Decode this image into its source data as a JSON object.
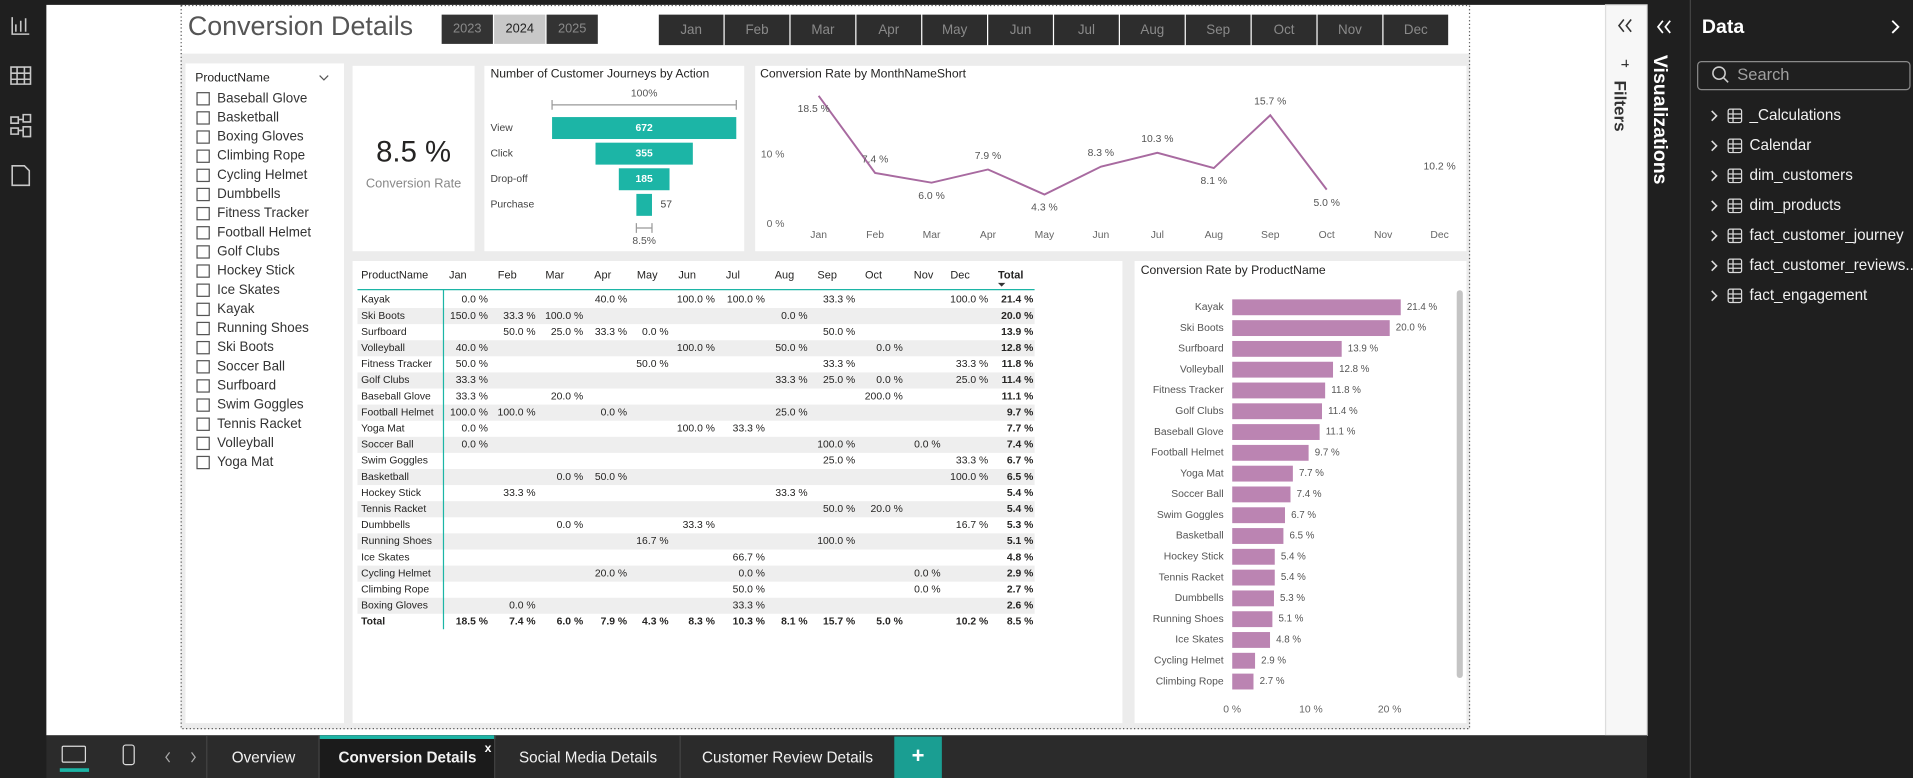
{
  "header": {
    "title": "Conversion Details",
    "years": [
      "2023",
      "2024",
      "2025"
    ],
    "selected_year": "2024",
    "months": [
      "Jan",
      "Feb",
      "Mar",
      "Apr",
      "May",
      "Jun",
      "Jul",
      "Aug",
      "Sep",
      "Oct",
      "Nov",
      "Dec"
    ]
  },
  "slicer": {
    "title": "ProductName",
    "items": [
      "Baseball Glove",
      "Basketball",
      "Boxing Gloves",
      "Climbing Rope",
      "Cycling Helmet",
      "Dumbbells",
      "Fitness Tracker",
      "Football Helmet",
      "Golf Clubs",
      "Hockey Stick",
      "Ice Skates",
      "Kayak",
      "Running Shoes",
      "Ski Boots",
      "Soccer Ball",
      "Surfboard",
      "Swim Goggles",
      "Tennis Racket",
      "Volleyball",
      "Yoga Mat"
    ]
  },
  "card": {
    "value": "8.5 %",
    "label": "Conversion Rate"
  },
  "chart_data": [
    {
      "type": "funnel",
      "title": "Number of Customer Journeys by Action",
      "categories": [
        "View",
        "Click",
        "Drop-off",
        "Purchase"
      ],
      "values": [
        672,
        355,
        185,
        57
      ],
      "color": "#1cb5a6",
      "top_label": "100%",
      "bottom_label": "8.5%"
    },
    {
      "type": "line",
      "title": "Conversion Rate by MonthNameShort",
      "categories": [
        "Jan",
        "Feb",
        "Mar",
        "Apr",
        "May",
        "Jun",
        "Jul",
        "Aug",
        "Sep",
        "Oct",
        "Nov",
        "Dec"
      ],
      "values": [
        18.5,
        7.4,
        6.0,
        7.9,
        4.3,
        8.3,
        10.3,
        8.1,
        15.7,
        5.0,
        null,
        10.2
      ],
      "value_labels": [
        "18.5 %",
        "7.4 %",
        "6.0 %",
        "7.9 %",
        "4.3 %",
        "8.3 %",
        "10.3 %",
        "8.1 %",
        "15.7 %",
        "5.0 %",
        null,
        "10.2 %"
      ],
      "color": "#a86aa0",
      "ylim": [
        0,
        19
      ],
      "yticks": [
        {
          "value": 0,
          "label": "0 %"
        },
        {
          "value": 10,
          "label": "10 %"
        }
      ],
      "grid": false
    },
    {
      "type": "hbar",
      "title": "Conversion Rate by ProductName",
      "categories": [
        "Kayak",
        "Ski Boots",
        "Surfboard",
        "Volleyball",
        "Fitness Tracker",
        "Golf Clubs",
        "Baseball Glove",
        "Football Helmet",
        "Yoga Mat",
        "Soccer Ball",
        "Swim Goggles",
        "Basketball",
        "Hockey Stick",
        "Tennis Racket",
        "Dumbbells",
        "Running Shoes",
        "Ice Skates",
        "Cycling Helmet",
        "Climbing Rope"
      ],
      "values": [
        21.4,
        20.0,
        13.9,
        12.8,
        11.8,
        11.4,
        11.1,
        9.7,
        7.7,
        7.4,
        6.7,
        6.5,
        5.4,
        5.4,
        5.3,
        5.1,
        4.8,
        2.9,
        2.7
      ],
      "value_labels": [
        "21.4 %",
        "20.0 %",
        "13.9 %",
        "12.8 %",
        "11.8 %",
        "11.4 %",
        "11.1 %",
        "9.7 %",
        "7.7 %",
        "7.4 %",
        "6.7 %",
        "6.5 %",
        "5.4 %",
        "5.4 %",
        "5.3 %",
        "5.1 %",
        "4.8 %",
        "2.9 %",
        "2.7 %"
      ],
      "color": "#bb84b2",
      "xlim": [
        0,
        22
      ],
      "xticks": [
        {
          "value": 0,
          "label": "0 %"
        },
        {
          "value": 10,
          "label": "10 %"
        },
        {
          "value": 20,
          "label": "20 %"
        }
      ]
    }
  ],
  "matrix": {
    "columns": [
      "ProductName",
      "Jan",
      "Feb",
      "Mar",
      "Apr",
      "May",
      "Jun",
      "Jul",
      "Aug",
      "Sep",
      "Oct",
      "Nov",
      "Dec",
      "Total"
    ],
    "rows": [
      [
        "Kayak",
        "0.0 %",
        null,
        null,
        "40.0 %",
        null,
        "100.0 %",
        "100.0 %",
        null,
        "33.3 %",
        null,
        null,
        "100.0 %",
        "21.4 %"
      ],
      [
        "Ski Boots",
        "150.0 %",
        "33.3 %",
        "100.0 %",
        null,
        null,
        null,
        null,
        "0.0 %",
        null,
        null,
        null,
        null,
        "20.0 %"
      ],
      [
        "Surfboard",
        null,
        "50.0 %",
        "25.0 %",
        "33.3 %",
        "0.0 %",
        null,
        null,
        null,
        "50.0 %",
        null,
        null,
        null,
        "13.9 %"
      ],
      [
        "Volleyball",
        "40.0 %",
        null,
        null,
        null,
        null,
        "100.0 %",
        null,
        "50.0 %",
        null,
        "0.0 %",
        null,
        null,
        "12.8 %"
      ],
      [
        "Fitness Tracker",
        "50.0 %",
        null,
        null,
        null,
        "50.0 %",
        null,
        null,
        null,
        "33.3 %",
        null,
        null,
        "33.3 %",
        "11.8 %"
      ],
      [
        "Golf Clubs",
        "33.3 %",
        null,
        null,
        null,
        null,
        null,
        null,
        "33.3 %",
        "25.0 %",
        "0.0 %",
        null,
        "25.0 %",
        "11.4 %"
      ],
      [
        "Baseball Glove",
        "33.3 %",
        null,
        "20.0 %",
        null,
        null,
        null,
        null,
        null,
        null,
        "200.0 %",
        null,
        null,
        "11.1 %"
      ],
      [
        "Football Helmet",
        "100.0 %",
        "100.0 %",
        null,
        "0.0 %",
        null,
        null,
        null,
        "25.0 %",
        null,
        null,
        null,
        null,
        "9.7 %"
      ],
      [
        "Yoga Mat",
        "0.0 %",
        null,
        null,
        null,
        null,
        "100.0 %",
        "33.3 %",
        null,
        null,
        null,
        null,
        null,
        "7.7 %"
      ],
      [
        "Soccer Ball",
        "0.0 %",
        null,
        null,
        null,
        null,
        null,
        null,
        null,
        "100.0 %",
        null,
        "0.0 %",
        null,
        "7.4 %"
      ],
      [
        "Swim Goggles",
        null,
        null,
        null,
        null,
        null,
        null,
        null,
        null,
        "25.0 %",
        null,
        null,
        "33.3 %",
        "6.7 %"
      ],
      [
        "Basketball",
        null,
        null,
        "0.0 %",
        "50.0 %",
        null,
        null,
        null,
        null,
        null,
        null,
        null,
        "100.0 %",
        "6.5 %"
      ],
      [
        "Hockey Stick",
        null,
        "33.3 %",
        null,
        null,
        null,
        null,
        null,
        "33.3 %",
        null,
        null,
        null,
        null,
        "5.4 %"
      ],
      [
        "Tennis Racket",
        null,
        null,
        null,
        null,
        null,
        null,
        null,
        null,
        "50.0 %",
        "20.0 %",
        null,
        null,
        "5.4 %"
      ],
      [
        "Dumbbells",
        null,
        null,
        "0.0 %",
        null,
        null,
        "33.3 %",
        null,
        null,
        null,
        null,
        null,
        "16.7 %",
        "5.3 %"
      ],
      [
        "Running Shoes",
        null,
        null,
        null,
        null,
        "16.7 %",
        null,
        null,
        null,
        "100.0 %",
        null,
        null,
        null,
        "5.1 %"
      ],
      [
        "Ice Skates",
        null,
        null,
        null,
        null,
        null,
        null,
        "66.7 %",
        null,
        null,
        null,
        null,
        null,
        "4.8 %"
      ],
      [
        "Cycling Helmet",
        null,
        null,
        null,
        "20.0 %",
        null,
        null,
        "0.0 %",
        null,
        null,
        null,
        "0.0 %",
        null,
        "2.9 %"
      ],
      [
        "Climbing Rope",
        null,
        null,
        null,
        null,
        null,
        null,
        "50.0 %",
        null,
        null,
        null,
        "0.0 %",
        null,
        "2.7 %"
      ],
      [
        "Boxing Gloves",
        null,
        "0.0 %",
        null,
        null,
        null,
        null,
        "33.3 %",
        null,
        null,
        null,
        null,
        null,
        "2.6 %"
      ]
    ],
    "total": [
      "Total",
      "18.5 %",
      "7.4 %",
      "6.0 %",
      "7.9 %",
      "4.3 %",
      "8.3 %",
      "10.3 %",
      "8.1 %",
      "15.7 %",
      "5.0 %",
      null,
      "10.2 %",
      "8.5 %"
    ]
  },
  "panes": {
    "filters": "Filters",
    "visualizations": "Visualizations"
  },
  "data_pane": {
    "title": "Data",
    "search": "Search",
    "items": [
      "_Calculations",
      "Calendar",
      "dim_customers",
      "dim_products",
      "fact_customer_journey",
      "fact_customer_reviews...",
      "fact_engagement"
    ]
  },
  "tabs": {
    "items": [
      "Overview",
      "Conversion Details",
      "Social Media Details",
      "Customer Review Details"
    ],
    "active": "Conversion Details",
    "close": "x",
    "add": "+"
  }
}
